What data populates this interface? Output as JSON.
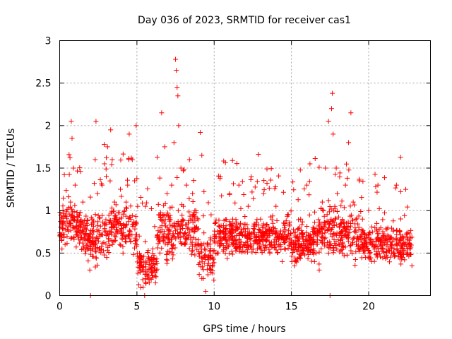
{
  "chart_data": {
    "type": "scatter",
    "title": "Day 036 of 2023, SRMTID for receiver cas1",
    "xlabel": "GPS time / hours",
    "ylabel": "SRMTID / TECUs",
    "xlim": [
      0,
      24
    ],
    "ylim": [
      0,
      3
    ],
    "xticks": [
      0,
      5,
      10,
      15,
      20
    ],
    "yticks": [
      0,
      0.5,
      1,
      1.5,
      2,
      2.5,
      3
    ],
    "xtick_labels": [
      "0",
      "5",
      "10",
      "15",
      "20"
    ],
    "ytick_labels": [
      "0",
      "0.5",
      "1",
      "1.5",
      "2",
      "2.5",
      "3"
    ],
    "grid": true,
    "marker": "+",
    "color": "#ff0000",
    "x_data_range": [
      0,
      22.8
    ],
    "series": [
      {
        "name": "cas1",
        "points": [
          [
            0.05,
            0.72
          ],
          [
            0.2,
            0.85
          ],
          [
            0.35,
            0.6
          ],
          [
            0.5,
            0.78
          ],
          [
            0.7,
            1.1
          ],
          [
            0.75,
            2.05
          ],
          [
            0.8,
            1.85
          ],
          [
            0.9,
            1.5
          ],
          [
            1.0,
            1.3
          ],
          [
            1.2,
            0.95
          ],
          [
            1.35,
            0.8
          ],
          [
            1.5,
            1.1
          ],
          [
            1.7,
            0.65
          ],
          [
            1.85,
            0.55
          ],
          [
            1.95,
            0.3
          ],
          [
            2.0,
            0.0
          ],
          [
            2.1,
            0.9
          ],
          [
            2.3,
            1.6
          ],
          [
            2.35,
            2.05
          ],
          [
            2.45,
            1.2
          ],
          [
            2.6,
            0.7
          ],
          [
            2.75,
            1.3
          ],
          [
            2.9,
            1.55
          ],
          [
            3.1,
            1.75
          ],
          [
            3.3,
            1.95
          ],
          [
            3.4,
            1.6
          ],
          [
            3.55,
            1.1
          ],
          [
            3.7,
            0.8
          ],
          [
            3.9,
            0.6
          ],
          [
            4.1,
            0.5
          ],
          [
            4.2,
            1.0
          ],
          [
            4.4,
            1.3
          ],
          [
            4.5,
            1.9
          ],
          [
            4.7,
            1.6
          ],
          [
            4.85,
            1.35
          ],
          [
            4.95,
            2.0
          ],
          [
            5.05,
            1.05
          ],
          [
            5.15,
            0.7
          ],
          [
            5.3,
            0.35
          ],
          [
            5.4,
            0.1
          ],
          [
            5.5,
            0.0
          ],
          [
            5.65,
            0.25
          ],
          [
            5.8,
            0.15
          ],
          [
            5.95,
            0.45
          ],
          [
            6.1,
            0.3
          ],
          [
            6.3,
            0.7
          ],
          [
            6.5,
            0.95
          ],
          [
            6.6,
            2.15
          ],
          [
            6.8,
            1.75
          ],
          [
            6.95,
            1.2
          ],
          [
            7.1,
            0.9
          ],
          [
            7.25,
            1.3
          ],
          [
            7.4,
            1.8
          ],
          [
            7.5,
            2.78
          ],
          [
            7.55,
            2.65
          ],
          [
            7.6,
            2.45
          ],
          [
            7.65,
            2.35
          ],
          [
            7.7,
            2.0
          ],
          [
            7.85,
            1.5
          ],
          [
            8.0,
            1.05
          ],
          [
            8.2,
            1.3
          ],
          [
            8.4,
            1.6
          ],
          [
            8.6,
            1.2
          ],
          [
            8.8,
            0.8
          ],
          [
            9.0,
            0.5
          ],
          [
            9.1,
            1.92
          ],
          [
            9.2,
            1.65
          ],
          [
            9.3,
            0.2
          ],
          [
            9.45,
            0.05
          ],
          [
            9.6,
            0.6
          ],
          [
            9.8,
            0.95
          ],
          [
            10.0,
            0.7
          ],
          [
            10.2,
            0.5
          ],
          [
            10.4,
            1.4
          ],
          [
            10.6,
            0.8
          ],
          [
            10.8,
            0.55
          ],
          [
            11.0,
            1.2
          ],
          [
            11.2,
            0.9
          ],
          [
            11.4,
            0.65
          ],
          [
            11.6,
            1.3
          ],
          [
            11.8,
            0.75
          ],
          [
            12.0,
            0.6
          ],
          [
            12.2,
            1.05
          ],
          [
            12.4,
            1.4
          ],
          [
            12.6,
            0.7
          ],
          [
            12.8,
            0.55
          ],
          [
            13.0,
            0.9
          ],
          [
            13.2,
            1.2
          ],
          [
            13.4,
            0.65
          ],
          [
            13.6,
            0.5
          ],
          [
            13.8,
            0.85
          ],
          [
            14.0,
            1.05
          ],
          [
            14.2,
            0.6
          ],
          [
            14.4,
            0.4
          ],
          [
            14.6,
            0.75
          ],
          [
            14.8,
            0.95
          ],
          [
            15.0,
            0.55
          ],
          [
            15.2,
            0.35
          ],
          [
            15.4,
            0.7
          ],
          [
            15.6,
            0.9
          ],
          [
            15.8,
            0.5
          ],
          [
            16.0,
            1.3
          ],
          [
            16.2,
            1.55
          ],
          [
            16.4,
            0.8
          ],
          [
            16.6,
            0.5
          ],
          [
            16.8,
            0.3
          ],
          [
            17.0,
            1.1
          ],
          [
            17.2,
            1.5
          ],
          [
            17.4,
            2.05
          ],
          [
            17.5,
            0.0
          ],
          [
            17.6,
            2.2
          ],
          [
            17.65,
            2.38
          ],
          [
            17.7,
            1.9
          ],
          [
            17.9,
            1.5
          ],
          [
            18.1,
            0.8
          ],
          [
            18.3,
            0.5
          ],
          [
            18.5,
            1.3
          ],
          [
            18.7,
            1.8
          ],
          [
            18.85,
            2.15
          ],
          [
            19.0,
            1.1
          ],
          [
            19.2,
            0.6
          ],
          [
            19.4,
            1.35
          ],
          [
            19.6,
            0.9
          ],
          [
            19.8,
            0.45
          ],
          [
            20.0,
            1.0
          ],
          [
            20.2,
            0.4
          ],
          [
            20.4,
            0.8
          ],
          [
            20.6,
            1.3
          ],
          [
            20.8,
            0.55
          ],
          [
            21.0,
            0.7
          ],
          [
            21.2,
            0.45
          ],
          [
            21.4,
            0.6
          ],
          [
            21.6,
            0.5
          ],
          [
            21.8,
            1.3
          ],
          [
            22.0,
            0.75
          ],
          [
            22.2,
            0.45
          ],
          [
            22.4,
            1.25
          ],
          [
            22.6,
            0.6
          ],
          [
            22.8,
            0.35
          ]
        ]
      }
    ]
  }
}
